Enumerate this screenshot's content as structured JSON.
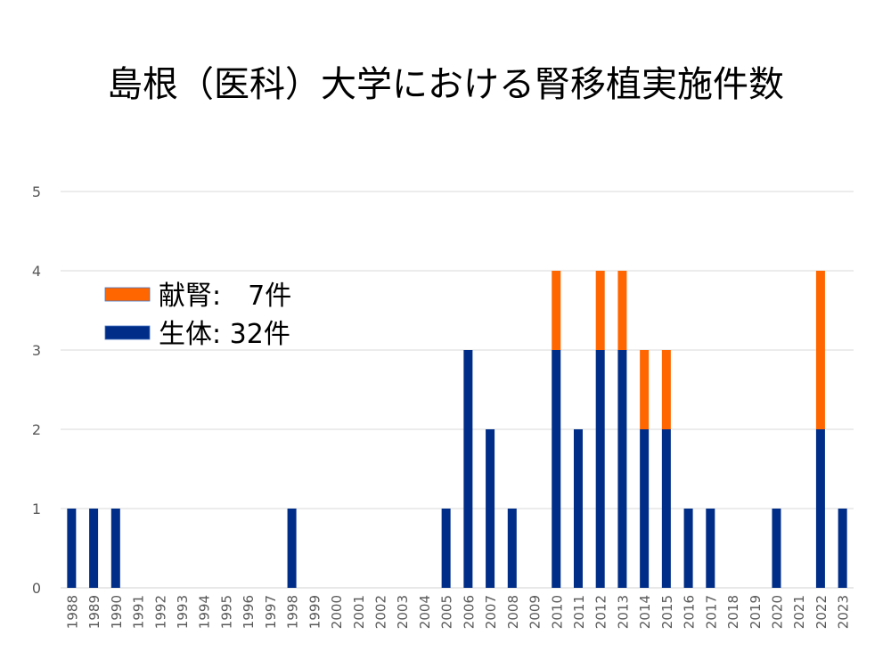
{
  "chart_data": {
    "type": "bar",
    "stacked": true,
    "title": "島根（医科）大学における腎移植実施件数",
    "xlabel": "",
    "ylabel": "",
    "ylim": [
      0,
      5
    ],
    "yticks": [
      0,
      1,
      2,
      3,
      4,
      5
    ],
    "grid": true,
    "legend_position": "top-left",
    "categories": [
      "1988",
      "1989",
      "1990",
      "1991",
      "1992",
      "1993",
      "1994",
      "1995",
      "1996",
      "1997",
      "1998",
      "1999",
      "2000",
      "2001",
      "2002",
      "2003",
      "2004",
      "2005",
      "2006",
      "2007",
      "2008",
      "2009",
      "2010",
      "2011",
      "2012",
      "2013",
      "2014",
      "2015",
      "2016",
      "2017",
      "2018",
      "2019",
      "2020",
      "2021",
      "2022",
      "2023"
    ],
    "series": [
      {
        "name": "生体: 32件",
        "color": "#002D87",
        "values": [
          1,
          1,
          1,
          0,
          0,
          0,
          0,
          0,
          0,
          0,
          1,
          0,
          0,
          0,
          0,
          0,
          0,
          1,
          3,
          2,
          1,
          0,
          3,
          2,
          3,
          3,
          2,
          2,
          1,
          1,
          0,
          0,
          1,
          0,
          2,
          1
        ]
      },
      {
        "name": "献腎:　7件",
        "color": "#FF6600",
        "values": [
          0,
          0,
          0,
          0,
          0,
          0,
          0,
          0,
          0,
          0,
          0,
          0,
          0,
          0,
          0,
          0,
          0,
          0,
          0,
          0,
          0,
          0,
          1,
          0,
          1,
          1,
          1,
          1,
          0,
          0,
          0,
          0,
          0,
          0,
          2,
          0
        ]
      }
    ],
    "legend_order": [
      1,
      0
    ]
  }
}
